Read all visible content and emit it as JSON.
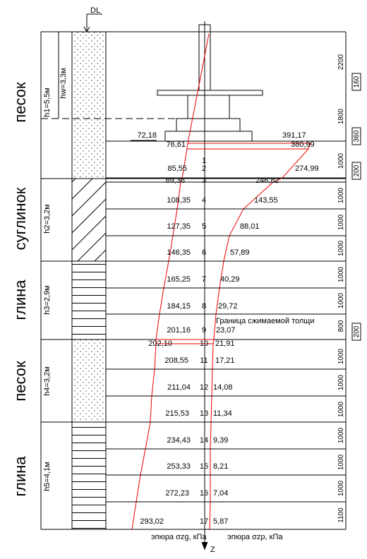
{
  "dl": "DL",
  "water_level": "hw=3,3м",
  "layers": [
    {
      "soil": "песок",
      "thickness": "h1=5,5м"
    },
    {
      "soil": "суглинок",
      "thickness": "h2=3,2м"
    },
    {
      "soil": "глина",
      "thickness": "h3=2,9м"
    },
    {
      "soil": "песок",
      "thickness": "h4=3,2м"
    },
    {
      "soil": "глина",
      "thickness": "h5=4,1м"
    }
  ],
  "dimensions": [
    "2200",
    "160",
    "1800",
    "360",
    "1000",
    "200",
    "1000",
    "1000",
    "1000",
    "1000",
    "1000",
    "800",
    "200",
    "1000",
    "1000",
    "1000",
    "1000",
    "1000",
    "1000",
    "1100"
  ],
  "points": [
    {
      "szg": "72,18",
      "szp": "391,17"
    },
    {
      "n": "1",
      "szg": "76,61",
      "szp": "380,99"
    },
    {
      "n": "2",
      "szg": "85,55",
      "szp": "274,99"
    },
    {
      "n": "3",
      "szg": "89,36",
      "szp": "246,82"
    },
    {
      "n": "4",
      "szg": "108,35",
      "szp": "143,55"
    },
    {
      "n": "5",
      "szg": "127,35",
      "szp": "88,01"
    },
    {
      "n": "6",
      "szg": "146,35",
      "szp": "57,89"
    },
    {
      "n": "7",
      "szg": "165,25",
      "szp": "40,29"
    },
    {
      "n": "8",
      "szg": "184,15",
      "szp": "29,72"
    },
    {
      "n": "9",
      "szg": "201,16",
      "szp": "23,07"
    },
    {
      "n": "10",
      "szg": "202,10",
      "szp": "21,91"
    },
    {
      "n": "11",
      "szg": "208,55",
      "szp": "17,21"
    },
    {
      "n": "12",
      "szg": "211,04",
      "szp": "14,08"
    },
    {
      "n": "13",
      "szg": "215,53",
      "szp": "11,34"
    },
    {
      "n": "14",
      "szg": "234,43",
      "szp": "9,39"
    },
    {
      "n": "15",
      "szg": "253,33",
      "szp": "8,21"
    },
    {
      "n": "16",
      "szg": "272,23",
      "szp": "7,04"
    },
    {
      "n": "17",
      "szg": "293,02",
      "szp": "5,87"
    }
  ],
  "boundary_note": "Граница сжимаемой толщи",
  "axis_labels": {
    "szg": "эпюра σzg, кПа",
    "szp": "эпюра σzp, кПа",
    "z": "Z"
  }
}
